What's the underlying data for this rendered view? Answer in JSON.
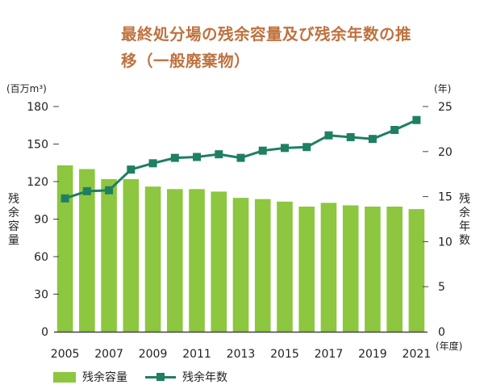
{
  "title": {
    "line1": "最終処分場の残余容量及び残余年数の推",
    "line2": "移（一般廃棄物）"
  },
  "colors": {
    "title": "#c0713e",
    "bar": "#8dc63f",
    "line": "#1f7f63",
    "axis": "#444444"
  },
  "chart_data": {
    "type": "bar",
    "x": [
      2005,
      2006,
      2007,
      2008,
      2009,
      2010,
      2011,
      2012,
      2013,
      2014,
      2015,
      2016,
      2017,
      2018,
      2019,
      2020,
      2021
    ],
    "series": [
      {
        "name": "残余容量",
        "type": "bar",
        "axis": "left",
        "values": [
          133,
          130,
          122,
          122,
          116,
          114,
          114,
          112,
          107,
          106,
          104,
          100,
          103,
          101,
          100,
          100,
          98
        ]
      },
      {
        "name": "残余年数",
        "type": "line",
        "axis": "right",
        "values": [
          14.8,
          15.6,
          15.7,
          18.0,
          18.7,
          19.3,
          19.4,
          19.7,
          19.3,
          20.1,
          20.4,
          20.5,
          21.8,
          21.6,
          21.4,
          22.4,
          23.5
        ]
      }
    ],
    "x_tick_labels": [
      "2005",
      "2007",
      "2009",
      "2011",
      "2013",
      "2015",
      "2017",
      "2019",
      "2021"
    ],
    "x_unit": "(年度)",
    "left_axis": {
      "label": "残余容量",
      "unit": "(百万m³)",
      "ylim": [
        0,
        180
      ],
      "ticks": [
        "0",
        "30",
        "60",
        "90",
        "120",
        "150",
        "180"
      ]
    },
    "right_axis": {
      "label": "残余年数",
      "unit": "(年)",
      "ylim": [
        0,
        25
      ],
      "ticks": [
        "0",
        "5",
        "10",
        "15",
        "20",
        "25"
      ]
    },
    "legend": {
      "position": "bottom-left",
      "bar_label": "残余容量",
      "line_label": "残余年数"
    },
    "grid": false
  }
}
